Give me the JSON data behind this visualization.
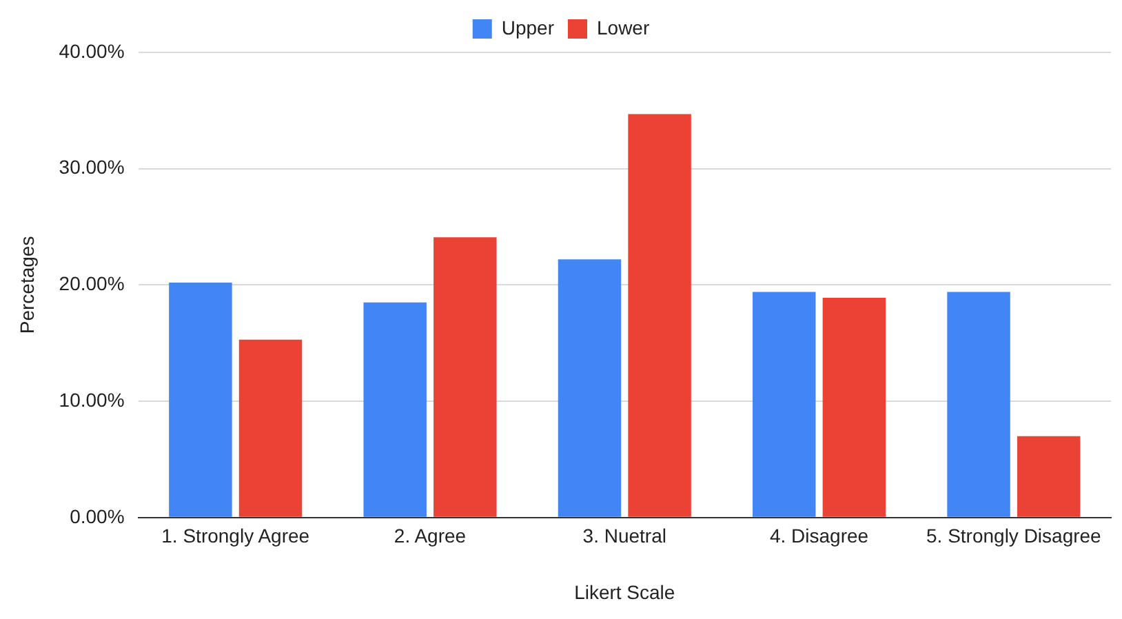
{
  "chart_data": {
    "type": "bar",
    "xlabel": "Likert Scale",
    "ylabel": "Percetages",
    "categories": [
      "1. Strongly Agree",
      "2. Agree",
      "3. Nuetral",
      "4. Disagree",
      "5. Strongly Disagree"
    ],
    "series": [
      {
        "name": "Upper",
        "color": "#4285f4",
        "values": [
          20.2,
          18.5,
          22.2,
          19.4,
          19.4
        ]
      },
      {
        "name": "Lower",
        "color": "#ea4335",
        "values": [
          15.3,
          24.1,
          34.7,
          18.9,
          7.0
        ]
      }
    ],
    "ylim": [
      0,
      40
    ],
    "yticks": [
      {
        "value": 0,
        "label": "0.00%"
      },
      {
        "value": 10,
        "label": "10.00%"
      },
      {
        "value": 20,
        "label": "20.00%"
      },
      {
        "value": 30,
        "label": "30.00%"
      },
      {
        "value": 40,
        "label": "40.00%"
      }
    ],
    "grid": "y",
    "legend": "top"
  }
}
